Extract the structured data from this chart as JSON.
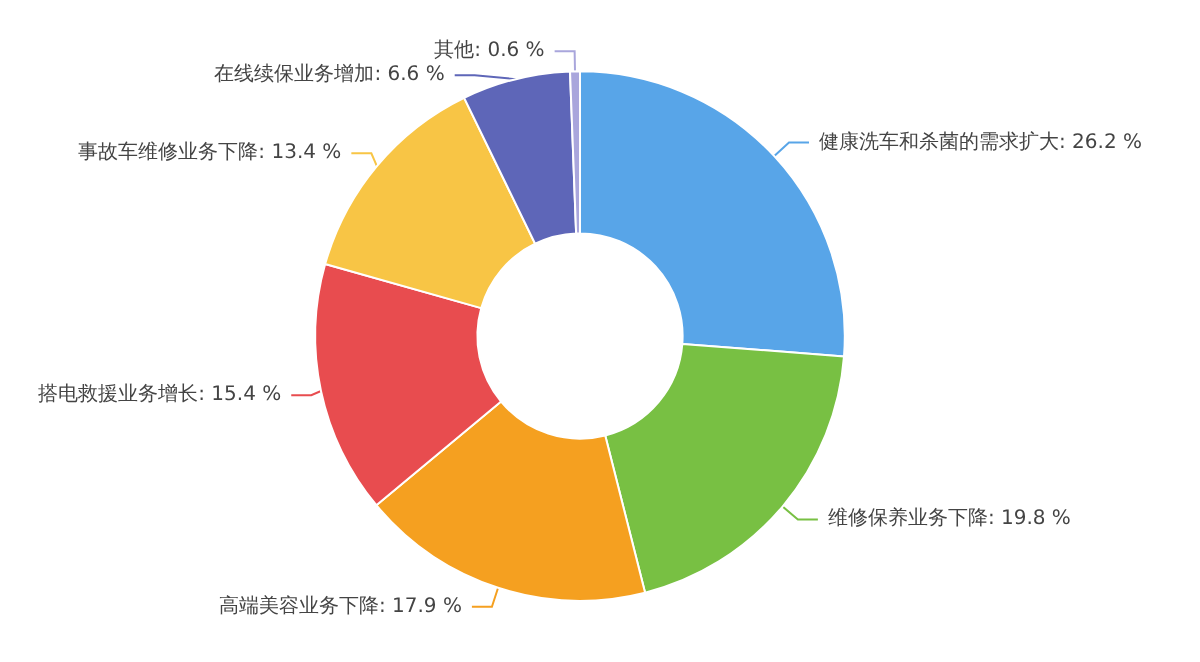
{
  "chart_data": {
    "type": "donut",
    "categories": [
      "健康洗车和杀菌的需求扩大",
      "维修保养业务下降",
      "高端美容业务下降",
      "搭电救援业务增长",
      "事故车维修业务下降",
      "在线续保业务增加",
      "其他"
    ],
    "values": [
      26.2,
      19.8,
      17.9,
      15.4,
      13.4,
      6.6,
      0.6
    ],
    "colors": [
      "#58a5e8",
      "#78c043",
      "#f5a020",
      "#e84c4f",
      "#f8c545",
      "#5e66b8",
      "#a9a6dc"
    ],
    "value_labels": [
      "26.2 %",
      "19.8 %",
      "17.9 %",
      "15.4 %",
      "13.4 %",
      "6.6 %",
      "0.6 %"
    ],
    "legend": false
  }
}
